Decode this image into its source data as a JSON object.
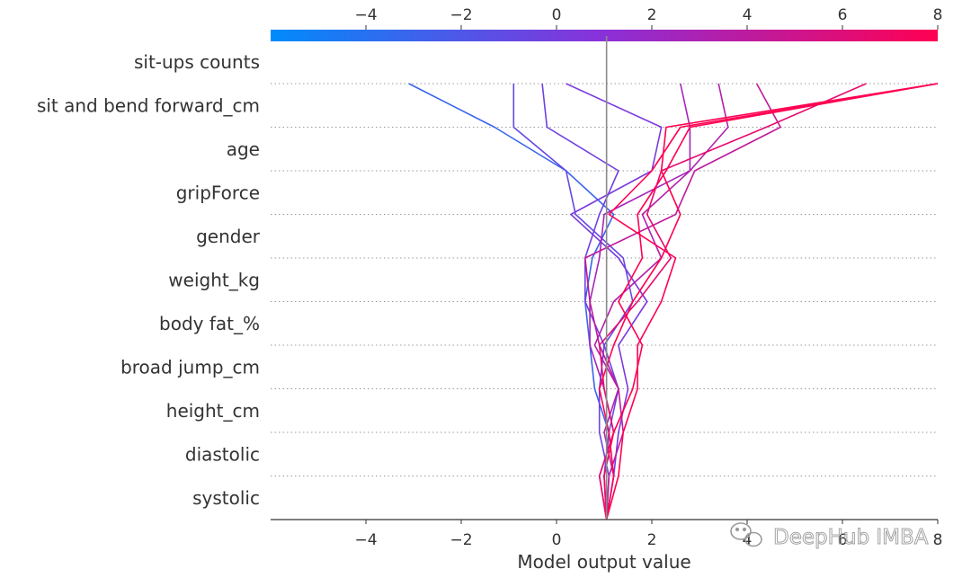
{
  "chart_data": {
    "type": "line",
    "chart_kind": "shap-decision-plot",
    "xlabel": "Model output value",
    "ylabel": "",
    "xlim": [
      -6,
      8
    ],
    "base_value": 1.05,
    "x_ticks": [
      -4,
      -2,
      0,
      2,
      4,
      6,
      8
    ],
    "x_tick_labels": [
      "−4",
      "−2",
      "0",
      "2",
      "4",
      "6",
      "8"
    ],
    "bottom_tick_labels": [
      "−4",
      "−2",
      "0",
      "2",
      "4",
      "6",
      "8"
    ],
    "colorbar": {
      "ticks": [
        -4,
        -2,
        0,
        2,
        4,
        6,
        8
      ],
      "tick_labels": [
        "−4",
        "−2",
        "0",
        "2",
        "4",
        "6",
        "8"
      ],
      "colors": [
        "#008bfb",
        "#ff0052"
      ]
    },
    "features": [
      "sit-ups counts",
      "sit and bend forward_cm",
      "age",
      "gripForce",
      "gender",
      "weight_kg",
      "body fat_%",
      "broad jump_cm",
      "height_cm",
      "diastolic",
      "systolic"
    ],
    "grid": "horizontal-dotted",
    "series": [
      {
        "values": [
          1.05,
          1.0,
          1.1,
          0.8,
          0.7,
          0.6,
          0.75,
          1.2,
          0.2,
          -1.3,
          -3.1
        ]
      },
      {
        "values": [
          1.05,
          1.0,
          1.1,
          1.3,
          1.0,
          1.6,
          1.4,
          0.4,
          0.2,
          -0.9,
          -0.9
        ]
      },
      {
        "values": [
          1.05,
          1.1,
          0.9,
          0.9,
          1.0,
          0.6,
          0.6,
          0.9,
          1.3,
          -0.2,
          -0.3
        ]
      },
      {
        "values": [
          1.05,
          1.2,
          1.3,
          1.5,
          1.3,
          1.9,
          1.3,
          0.3,
          2.0,
          2.2,
          0.2
        ]
      },
      {
        "values": [
          1.05,
          0.9,
          1.2,
          1.0,
          0.7,
          0.7,
          0.9,
          1.0,
          2.8,
          2.8,
          2.6
        ]
      },
      {
        "values": [
          1.05,
          1.2,
          1.0,
          1.3,
          0.8,
          1.2,
          2.2,
          1.8,
          2.8,
          3.6,
          3.4
        ]
      },
      {
        "values": [
          1.05,
          1.1,
          1.4,
          1.3,
          0.9,
          0.7,
          0.6,
          2.5,
          2.9,
          4.7,
          4.2
        ]
      },
      {
        "values": [
          1.05,
          0.9,
          1.2,
          1.0,
          0.9,
          1.7,
          2.4,
          1.9,
          2.2,
          4.4,
          6.5
        ]
      },
      {
        "values": [
          1.05,
          1.3,
          1.4,
          1.7,
          1.7,
          2.2,
          2.5,
          1.1,
          2.0,
          2.6,
          8.0
        ]
      },
      {
        "values": [
          1.05,
          1.0,
          1.2,
          1.6,
          1.8,
          1.3,
          1.8,
          1.7,
          2.3,
          2.8,
          8.0
        ]
      },
      {
        "values": [
          1.05,
          1.2,
          1.1,
          0.9,
          1.2,
          1.6,
          2.2,
          2.6,
          2.2,
          2.3,
          8.0
        ]
      }
    ]
  },
  "watermark": {
    "text": "DeepHub IMBA",
    "icon": "wechat-icon"
  }
}
